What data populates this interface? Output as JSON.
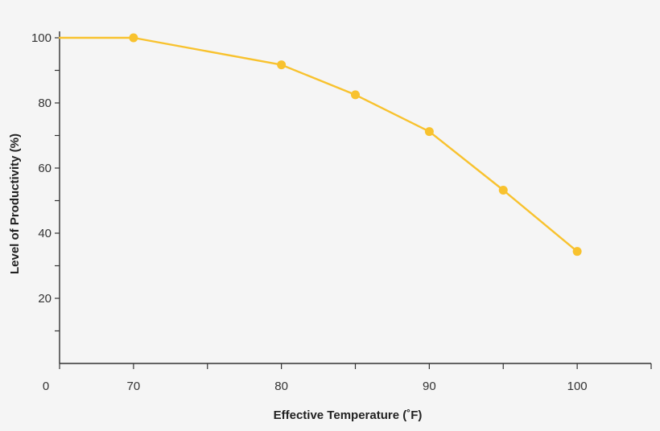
{
  "chart_data": {
    "type": "line",
    "title": "",
    "xlabel": "Effective Temperature (˚F)",
    "ylabel": "Level of Productivity (%)",
    "x_origin_label": "0",
    "xlim": [
      65,
      105
    ],
    "ylim": [
      0,
      100
    ],
    "x_ticks": [
      65,
      70,
      75,
      80,
      85,
      90,
      95,
      100,
      105
    ],
    "x_tick_labels": [
      {
        "value": 70,
        "label": "70"
      },
      {
        "value": 80,
        "label": "80"
      },
      {
        "value": 90,
        "label": "90"
      },
      {
        "value": 100,
        "label": "100"
      }
    ],
    "y_ticks": [
      10,
      20,
      30,
      40,
      50,
      60,
      70,
      80,
      90,
      100
    ],
    "y_tick_labels": [
      {
        "value": 20,
        "label": "20"
      },
      {
        "value": 40,
        "label": "40"
      },
      {
        "value": 60,
        "label": "60"
      },
      {
        "value": 80,
        "label": "80"
      },
      {
        "value": 100,
        "label": "100"
      }
    ],
    "grid": false,
    "series": [
      {
        "line_start": {
          "x": 65,
          "y": 100
        },
        "points": [
          {
            "x": 70,
            "y": 100
          },
          {
            "x": 80,
            "y": 91.7
          },
          {
            "x": 85,
            "y": 82.5
          },
          {
            "x": 90,
            "y": 71.2
          },
          {
            "x": 95,
            "y": 53.2
          },
          {
            "x": 100,
            "y": 34.4
          }
        ],
        "color": "#f8c22e"
      }
    ]
  }
}
